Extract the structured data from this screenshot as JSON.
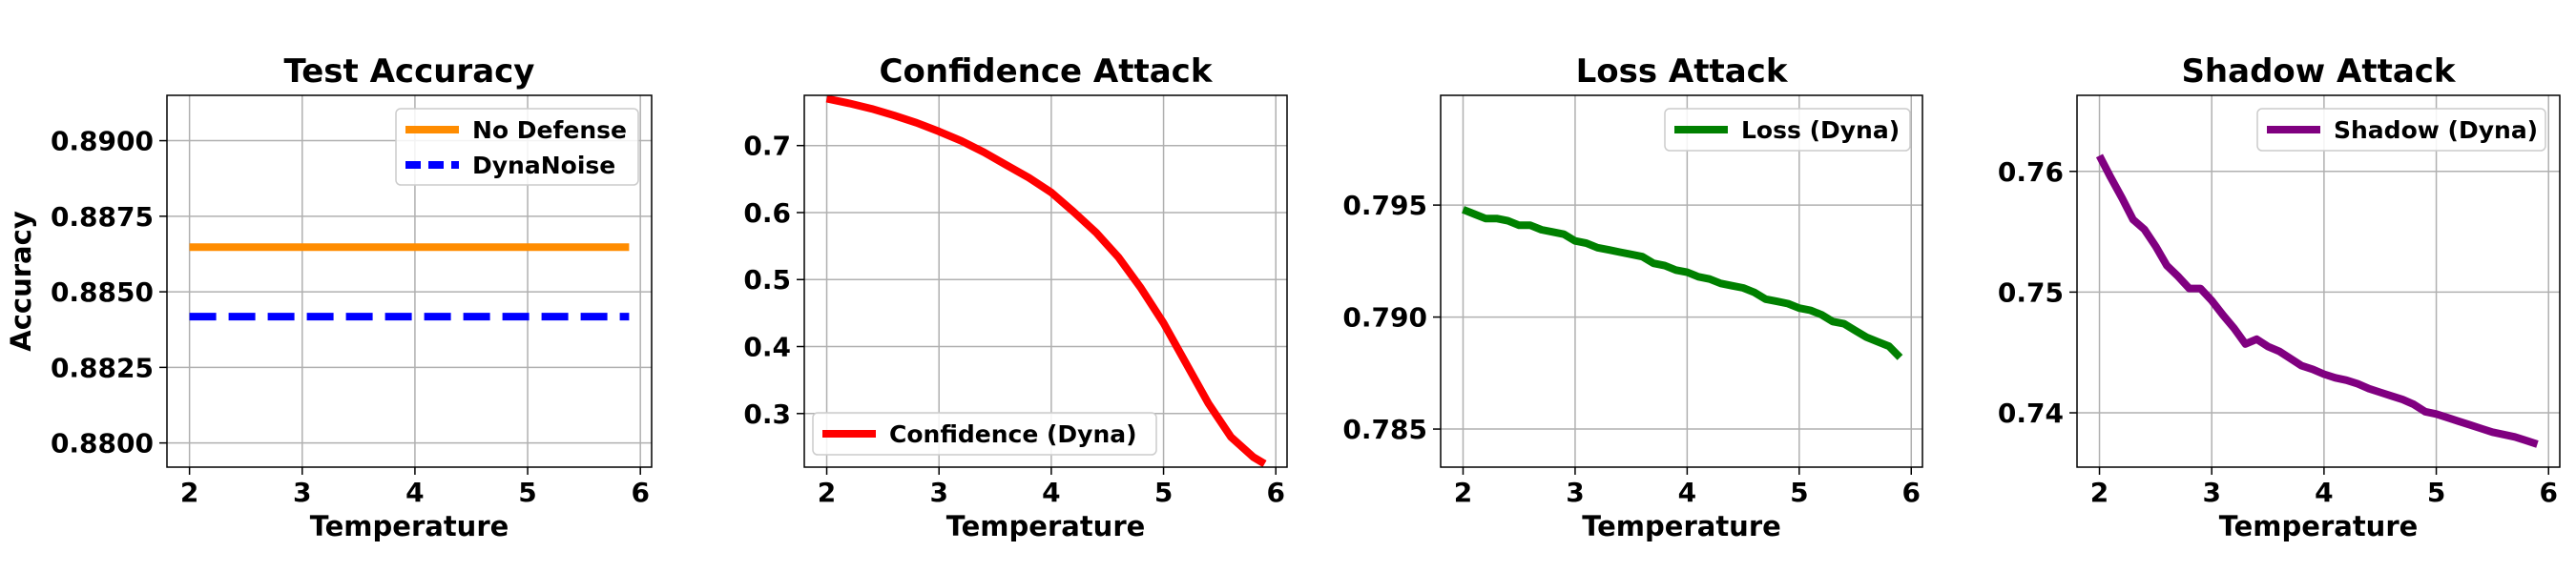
{
  "figure": {
    "chart_data": [
      {
        "type": "line",
        "title": "Test Accuracy",
        "xlabel": "Temperature",
        "ylabel": "Accuracy",
        "xlim": [
          1.8,
          6.1
        ],
        "ylim": [
          0.8792,
          0.8915
        ],
        "xticks": [
          2,
          3,
          4,
          5,
          6
        ],
        "yticks": [
          0.88,
          0.8825,
          0.885,
          0.8875,
          0.89
        ],
        "ytick_labels": [
          "0.8800",
          "0.8825",
          "0.8850",
          "0.8875",
          "0.8900"
        ],
        "grid": true,
        "legend_position": "top-right",
        "series": [
          {
            "name": "No Defense",
            "color": "#ff8c00",
            "dash": "solid",
            "x": [
              2.0,
              5.9
            ],
            "y": [
              0.88648,
              0.88648
            ]
          },
          {
            "name": "DynaNoise",
            "color": "#0000ff",
            "dash": "dashed",
            "x": [
              2.0,
              5.9
            ],
            "y": [
              0.88418,
              0.88418
            ]
          }
        ]
      },
      {
        "type": "line",
        "title": "Confidence Attack",
        "xlabel": "Temperature",
        "ylabel": "",
        "xlim": [
          1.8,
          6.1
        ],
        "ylim": [
          0.22,
          0.775
        ],
        "xticks": [
          2,
          3,
          4,
          5,
          6
        ],
        "yticks": [
          0.3,
          0.4,
          0.5,
          0.6,
          0.7
        ],
        "ytick_labels": [
          "0.3",
          "0.4",
          "0.5",
          "0.6",
          "0.7"
        ],
        "grid": true,
        "legend_position": "bottom-left",
        "series": [
          {
            "name": "Confidence (Dyna)",
            "color": "#ff0000",
            "dash": "solid",
            "x": [
              2.0,
              2.2,
              2.4,
              2.6,
              2.8,
              3.0,
              3.2,
              3.4,
              3.6,
              3.8,
              4.0,
              4.2,
              4.4,
              4.6,
              4.8,
              5.0,
              5.2,
              5.4,
              5.6,
              5.8,
              5.9
            ],
            "y": [
              0.77,
              0.763,
              0.755,
              0.745,
              0.734,
              0.721,
              0.707,
              0.69,
              0.671,
              0.652,
              0.63,
              0.601,
              0.57,
              0.533,
              0.487,
              0.435,
              0.375,
              0.315,
              0.265,
              0.235,
              0.225
            ]
          }
        ]
      },
      {
        "type": "line",
        "title": "Loss Attack",
        "xlabel": "Temperature",
        "ylabel": "",
        "xlim": [
          1.8,
          6.1
        ],
        "ylim": [
          0.7833,
          0.7999
        ],
        "xticks": [
          2,
          3,
          4,
          5,
          6
        ],
        "yticks": [
          0.785,
          0.79,
          0.795
        ],
        "ytick_labels": [
          "0.785",
          "0.790",
          "0.795"
        ],
        "grid": true,
        "legend_position": "top-right",
        "series": [
          {
            "name": "Loss (Dyna)",
            "color": "#008000",
            "dash": "solid",
            "x": [
              2.0,
              2.1,
              2.2,
              2.3,
              2.4,
              2.5,
              2.6,
              2.7,
              2.8,
              2.9,
              3.0,
              3.1,
              3.2,
              3.3,
              3.4,
              3.5,
              3.6,
              3.7,
              3.8,
              3.9,
              4.0,
              4.1,
              4.2,
              4.3,
              4.4,
              4.5,
              4.6,
              4.7,
              4.8,
              4.9,
              5.0,
              5.1,
              5.2,
              5.3,
              5.4,
              5.5,
              5.6,
              5.7,
              5.8,
              5.9
            ],
            "y": [
              0.7948,
              0.7946,
              0.7944,
              0.7944,
              0.7943,
              0.7941,
              0.7941,
              0.7939,
              0.7938,
              0.7937,
              0.7934,
              0.7933,
              0.7931,
              0.793,
              0.7929,
              0.7928,
              0.7927,
              0.7924,
              0.7923,
              0.7921,
              0.792,
              0.7918,
              0.7917,
              0.7915,
              0.7914,
              0.7913,
              0.7911,
              0.7908,
              0.7907,
              0.7906,
              0.7904,
              0.7903,
              0.7901,
              0.7898,
              0.7897,
              0.7894,
              0.7891,
              0.7889,
              0.7887,
              0.7882
            ]
          }
        ]
      },
      {
        "type": "line",
        "title": "Shadow Attack",
        "xlabel": "Temperature",
        "ylabel": "",
        "xlim": [
          1.8,
          6.1
        ],
        "ylim": [
          0.7355,
          0.7663
        ],
        "xticks": [
          2,
          3,
          4,
          5,
          6
        ],
        "yticks": [
          0.74,
          0.75,
          0.76
        ],
        "ytick_labels": [
          "0.74",
          "0.75",
          "0.76"
        ],
        "grid": true,
        "legend_position": "top-right",
        "series": [
          {
            "name": "Shadow (Dyna)",
            "color": "#800080",
            "dash": "solid",
            "x": [
              2.0,
              2.1,
              2.2,
              2.3,
              2.4,
              2.5,
              2.6,
              2.7,
              2.8,
              2.9,
              3.0,
              3.1,
              3.2,
              3.3,
              3.4,
              3.5,
              3.6,
              3.7,
              3.8,
              3.9,
              4.0,
              4.1,
              4.2,
              4.3,
              4.4,
              4.5,
              4.6,
              4.7,
              4.8,
              4.9,
              5.0,
              5.1,
              5.2,
              5.3,
              5.4,
              5.5,
              5.6,
              5.7,
              5.8,
              5.9
            ],
            "y": [
              0.7613,
              0.7595,
              0.7578,
              0.756,
              0.7552,
              0.7538,
              0.7522,
              0.7513,
              0.7503,
              0.7503,
              0.7493,
              0.7481,
              0.747,
              0.7457,
              0.7461,
              0.7455,
              0.7451,
              0.7445,
              0.7439,
              0.7436,
              0.7432,
              0.7429,
              0.7427,
              0.7424,
              0.742,
              0.7417,
              0.7414,
              0.7411,
              0.7407,
              0.7401,
              0.7399,
              0.7396,
              0.7393,
              0.739,
              0.7387,
              0.7384,
              0.7382,
              0.738,
              0.7377,
              0.7374
            ]
          }
        ]
      }
    ]
  }
}
